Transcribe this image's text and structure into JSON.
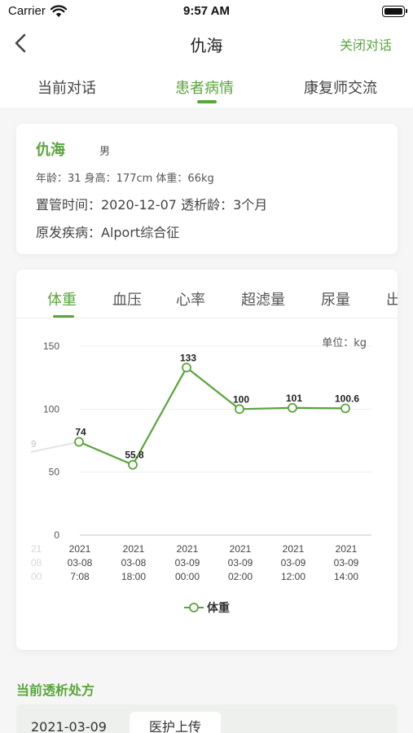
{
  "status_bar": {
    "carrier": "Carrier",
    "time": "9:57 AM"
  },
  "nav": {
    "title": "仇海",
    "close_label": "关闭对话"
  },
  "tabs": [
    {
      "label": "当前对话",
      "active": false
    },
    {
      "label": "患者病情",
      "active": true
    },
    {
      "label": "康复师交流",
      "active": false
    }
  ],
  "patient": {
    "name": "仇海",
    "gender": "男",
    "basic_info": "年龄：31   身高：177cm   体重：66kg",
    "tube_info": "置管时间：2020-12-07  透析龄：3个月",
    "disease_info": "原发疾病：Alport综合征"
  },
  "chart_tabs": [
    {
      "label": "体重",
      "active": true
    },
    {
      "label": "血压",
      "active": false
    },
    {
      "label": "心率",
      "active": false
    },
    {
      "label": "超滤量",
      "active": false
    },
    {
      "label": "尿量",
      "active": false
    },
    {
      "label": "出",
      "active": false
    }
  ],
  "chart_data": {
    "type": "line",
    "unit_label": "单位：kg",
    "ylim": [
      0,
      150
    ],
    "yticks": [
      "0",
      "50",
      "100",
      "150"
    ],
    "categories": [
      [
        "2021",
        "03-08",
        "7:08"
      ],
      [
        "2021",
        "03-08",
        "18:00"
      ],
      [
        "2021",
        "03-09",
        "00:00"
      ],
      [
        "2021",
        "03-09",
        "02:00"
      ],
      [
        "2021",
        "03-09",
        "12:00"
      ],
      [
        "2021",
        "03-09",
        "14:00"
      ]
    ],
    "series": [
      {
        "name": "体重",
        "values": [
          74,
          55.8,
          133,
          100,
          101,
          100.6
        ],
        "labels": [
          "74",
          "55.8",
          "133",
          "100",
          "101",
          "100.6"
        ]
      }
    ],
    "offscreen_left": {
      "value_label": "9",
      "tick_label_fragments": [
        "21",
        "08",
        "00"
      ]
    },
    "line_color": "#5aa53b",
    "grid": true,
    "legend": "bottom-center"
  },
  "prescription": {
    "section_title": "当前透析处方",
    "date": "2021-03-09",
    "upload_label": "医护上传"
  }
}
